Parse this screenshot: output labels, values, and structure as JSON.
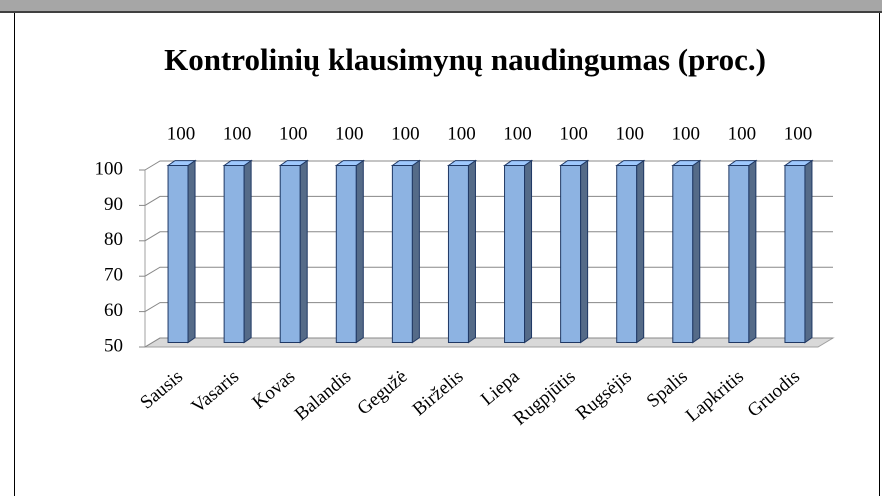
{
  "chart_data": {
    "type": "bar3d",
    "title": "Kontrolinių klausimynų  naudingumas (proc.)",
    "categories": [
      "Sausis",
      "Vasaris",
      "Kovas",
      "Balandis",
      "Gegužė",
      "Birželis",
      "Liepa",
      "Rugpjūtis",
      "Rugsėjis",
      "Spalis",
      "Lapkritis",
      "Gruodis"
    ],
    "values": [
      100,
      100,
      100,
      100,
      100,
      100,
      100,
      100,
      100,
      100,
      100,
      100
    ],
    "color": "#8db3e2",
    "ylim": [
      50,
      100
    ],
    "yticks": [
      50,
      60,
      70,
      80,
      90,
      100
    ],
    "grid": true
  }
}
